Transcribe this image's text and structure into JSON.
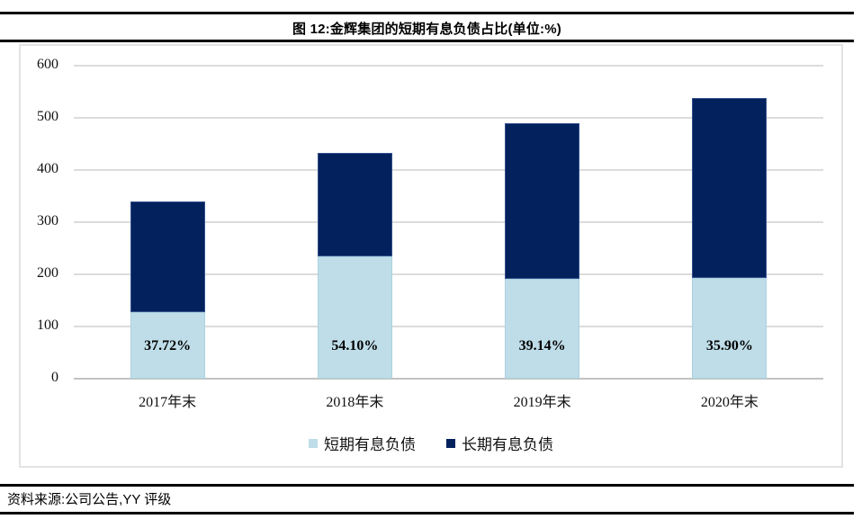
{
  "header": {
    "title": "图 12:金辉集团的短期有息负债占比(单位:%)"
  },
  "chart_data": {
    "type": "bar",
    "stacked": true,
    "title": "图 12:金辉集团的短期有息负债占比(单位:%)",
    "categories": [
      "2017年末",
      "2018年末",
      "2019年末",
      "2020年末"
    ],
    "series": [
      {
        "name": "短期有息负债",
        "color": "#bedde8",
        "values": [
          128,
          234,
          192,
          193
        ]
      },
      {
        "name": "长期有息负债",
        "color": "#03215c",
        "values": [
          212,
          198,
          298,
          345
        ]
      }
    ],
    "totals": [
      340,
      432,
      490,
      538
    ],
    "bar_labels": [
      "37.72%",
      "54.10%",
      "39.14%",
      "35.90%"
    ],
    "xlabel": "",
    "ylabel": "",
    "ylim": [
      0,
      600
    ],
    "yticks": [
      0,
      100,
      200,
      300,
      400,
      500,
      600
    ],
    "grid": true,
    "gridline_color": "#dcdcdc",
    "legend_position": "bottom"
  },
  "footer": {
    "source": "资料来源:公司公告,YY 评级"
  }
}
